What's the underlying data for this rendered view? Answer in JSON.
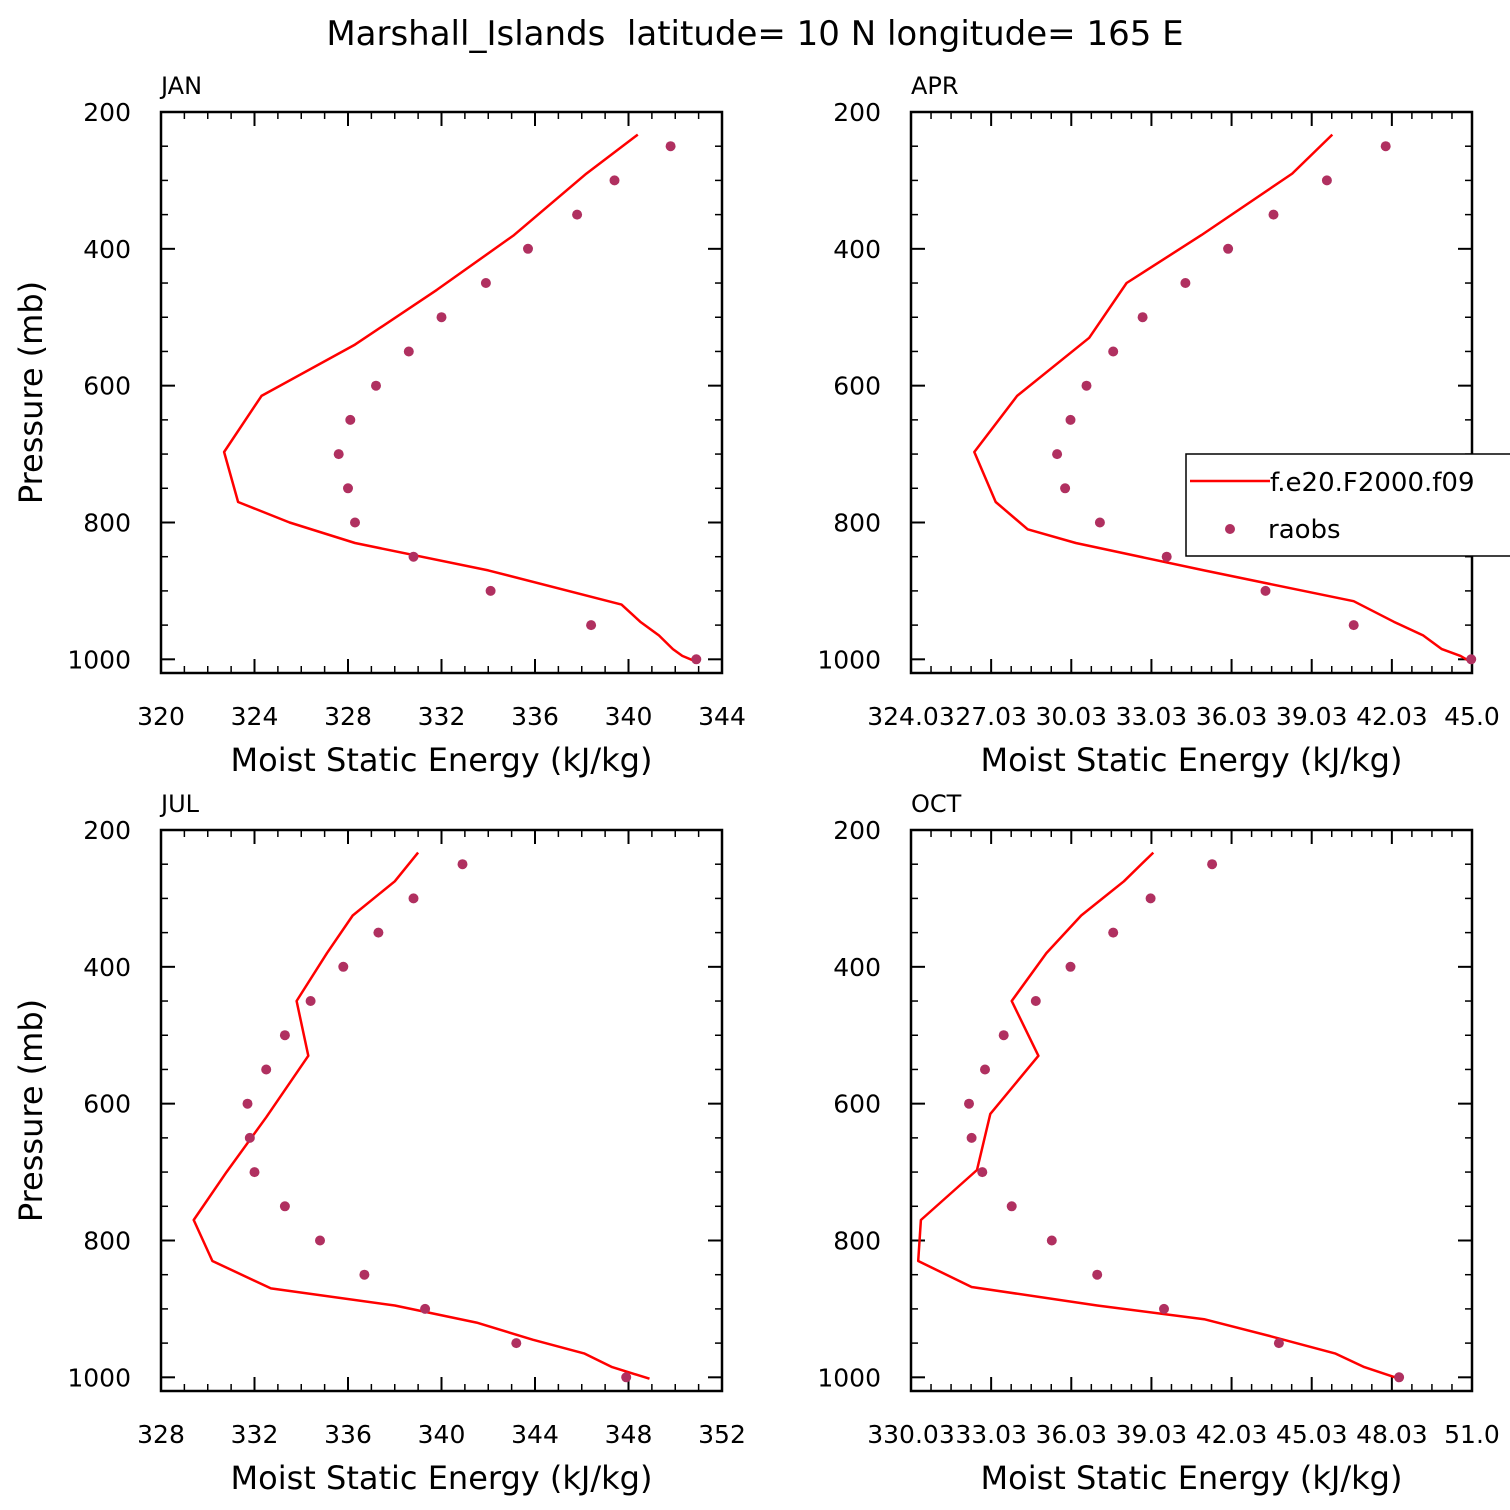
{
  "figure_title": "Marshall_Islands  latitude= 10 N longitude= 165 E",
  "colors": {
    "model": "#ff0000",
    "obs": "#b03060",
    "axis": "#000000"
  },
  "legend": {
    "model_label": "f.e20.F2000.f09",
    "obs_label": "raobs",
    "placement": "right-middle of APR panel"
  },
  "chart_data": [
    {
      "type": "line",
      "panel": "JAN",
      "xlabel": "Moist Static Energy (kJ/kg)",
      "ylabel": "Pressure (mb)",
      "xlim": [
        320,
        344
      ],
      "ylim": [
        200,
        1020
      ],
      "x_ticks": [
        320,
        324,
        328,
        332,
        336,
        340,
        344
      ],
      "x_tick_labels": [
        "320",
        "324",
        "328",
        "332",
        "336",
        "340",
        "344"
      ],
      "y_ticks": [
        200,
        400,
        600,
        800,
        1000
      ],
      "y_tick_labels": [
        "200",
        "400",
        "600",
        "800",
        "1000"
      ],
      "series": [
        {
          "name": "f.e20.F2000.f09",
          "kind": "line",
          "x": [
            340.4,
            338.2,
            335.1,
            331.8,
            328.3,
            324.3,
            322.7,
            323.3,
            325.5,
            328.3,
            334.0,
            339.7,
            340.5,
            341.3,
            341.9,
            342.3,
            343.0
          ],
          "p": [
            233,
            290,
            380,
            460,
            540,
            615,
            697,
            770,
            800,
            830,
            870,
            920,
            945,
            965,
            985,
            995,
            1005
          ]
        },
        {
          "name": "raobs",
          "kind": "points",
          "x": [
            341.8,
            339.4,
            337.8,
            335.7,
            333.9,
            332.0,
            330.6,
            329.2,
            328.1,
            327.6,
            328.0,
            328.3,
            330.8,
            334.1,
            338.4,
            342.9
          ],
          "p": [
            250,
            300,
            350,
            400,
            450,
            500,
            550,
            600,
            650,
            700,
            750,
            800,
            850,
            900,
            950,
            1000
          ]
        }
      ]
    },
    {
      "type": "line",
      "panel": "APR",
      "xlabel": "Moist Static Energy (kJ/kg)",
      "ylabel": "",
      "xlim": [
        324.03,
        345.03
      ],
      "ylim": [
        200,
        1020
      ],
      "x_ticks": [
        324.03,
        327.03,
        330.03,
        333.03,
        336.03,
        339.03,
        342.03,
        345.03
      ],
      "x_tick_labels": [
        "324.03",
        "27.03",
        "30.03",
        "33.03",
        "36.03",
        "39.03",
        "42.03",
        "45.0"
      ],
      "y_ticks": [
        200,
        400,
        600,
        800,
        1000
      ],
      "y_tick_labels": [
        "200",
        "400",
        "600",
        "800",
        "1000"
      ],
      "series": [
        {
          "name": "f.e20.F2000.f09",
          "kind": "line",
          "x": [
            339.8,
            338.3,
            334.9,
            332.1,
            330.7,
            328.0,
            326.4,
            327.2,
            328.4,
            330.2,
            335.0,
            340.6,
            342.1,
            343.2,
            343.9,
            344.6,
            345.03
          ],
          "p": [
            233,
            290,
            380,
            450,
            530,
            615,
            697,
            770,
            810,
            830,
            870,
            915,
            945,
            965,
            985,
            995,
            1005
          ]
        },
        {
          "name": "raobs",
          "kind": "points",
          "x": [
            341.8,
            339.6,
            337.6,
            335.9,
            334.3,
            332.7,
            331.6,
            330.6,
            330.0,
            329.5,
            329.8,
            331.1,
            333.6,
            337.3,
            340.6,
            345.0
          ],
          "p": [
            250,
            300,
            350,
            400,
            450,
            500,
            550,
            600,
            650,
            700,
            750,
            800,
            850,
            900,
            950,
            1000
          ]
        }
      ]
    },
    {
      "type": "line",
      "panel": "JUL",
      "xlabel": "Moist Static Energy (kJ/kg)",
      "ylabel": "Pressure (mb)",
      "xlim": [
        328,
        352
      ],
      "ylim": [
        200,
        1020
      ],
      "x_ticks": [
        328,
        332,
        336,
        340,
        344,
        348,
        352
      ],
      "x_tick_labels": [
        "328",
        "332",
        "336",
        "340",
        "344",
        "348",
        "352"
      ],
      "y_ticks": [
        200,
        400,
        600,
        800,
        1000
      ],
      "y_tick_labels": [
        "200",
        "400",
        "600",
        "800",
        "1000"
      ],
      "series": [
        {
          "name": "f.e20.F2000.f09",
          "kind": "line",
          "x": [
            339.0,
            338.0,
            336.2,
            335.1,
            333.8,
            334.3,
            332.5,
            330.8,
            329.4,
            330.2,
            332.7,
            338.0,
            341.5,
            343.9,
            346.1,
            347.3,
            348.9
          ],
          "p": [
            233,
            275,
            325,
            380,
            450,
            530,
            620,
            700,
            770,
            830,
            870,
            895,
            920,
            945,
            965,
            985,
            1002
          ]
        },
        {
          "name": "raobs",
          "kind": "points",
          "x": [
            340.9,
            338.8,
            337.3,
            335.8,
            334.4,
            333.3,
            332.5,
            331.7,
            331.8,
            332.0,
            333.3,
            334.8,
            336.7,
            339.3,
            343.2,
            347.9
          ],
          "p": [
            250,
            300,
            350,
            400,
            450,
            500,
            550,
            600,
            650,
            700,
            750,
            800,
            850,
            900,
            950,
            1000
          ]
        }
      ]
    },
    {
      "type": "line",
      "panel": "OCT",
      "xlabel": "Moist Static Energy (kJ/kg)",
      "ylabel": "",
      "xlim": [
        330.03,
        351.03
      ],
      "ylim": [
        200,
        1020
      ],
      "x_ticks": [
        330.03,
        333.03,
        336.03,
        339.03,
        342.03,
        345.03,
        348.03,
        351.03
      ],
      "x_tick_labels": [
        "330.03",
        "33.03",
        "36.03",
        "39.03",
        "42.03",
        "45.03",
        "48.03",
        "51.0"
      ],
      "y_ticks": [
        200,
        400,
        600,
        800,
        1000
      ],
      "y_tick_labels": [
        "200",
        "400",
        "600",
        "800",
        "1000"
      ],
      "series": [
        {
          "name": "f.e20.F2000.f09",
          "kind": "line",
          "x": [
            339.1,
            338.0,
            336.4,
            335.1,
            333.8,
            334.8,
            333.0,
            332.5,
            330.4,
            330.3,
            332.3,
            337.0,
            341.0,
            343.5,
            345.9,
            347.0,
            348.3
          ],
          "p": [
            233,
            275,
            325,
            380,
            450,
            530,
            615,
            697,
            770,
            830,
            868,
            895,
            915,
            940,
            965,
            985,
            1002
          ]
        },
        {
          "name": "raobs",
          "kind": "points",
          "x": [
            341.3,
            339.0,
            337.6,
            336.0,
            334.7,
            333.5,
            332.8,
            332.2,
            332.3,
            332.7,
            333.8,
            335.3,
            337.0,
            339.5,
            343.8,
            348.3
          ],
          "p": [
            250,
            300,
            350,
            400,
            450,
            500,
            550,
            600,
            650,
            700,
            750,
            800,
            850,
            900,
            950,
            1000
          ]
        }
      ]
    }
  ]
}
